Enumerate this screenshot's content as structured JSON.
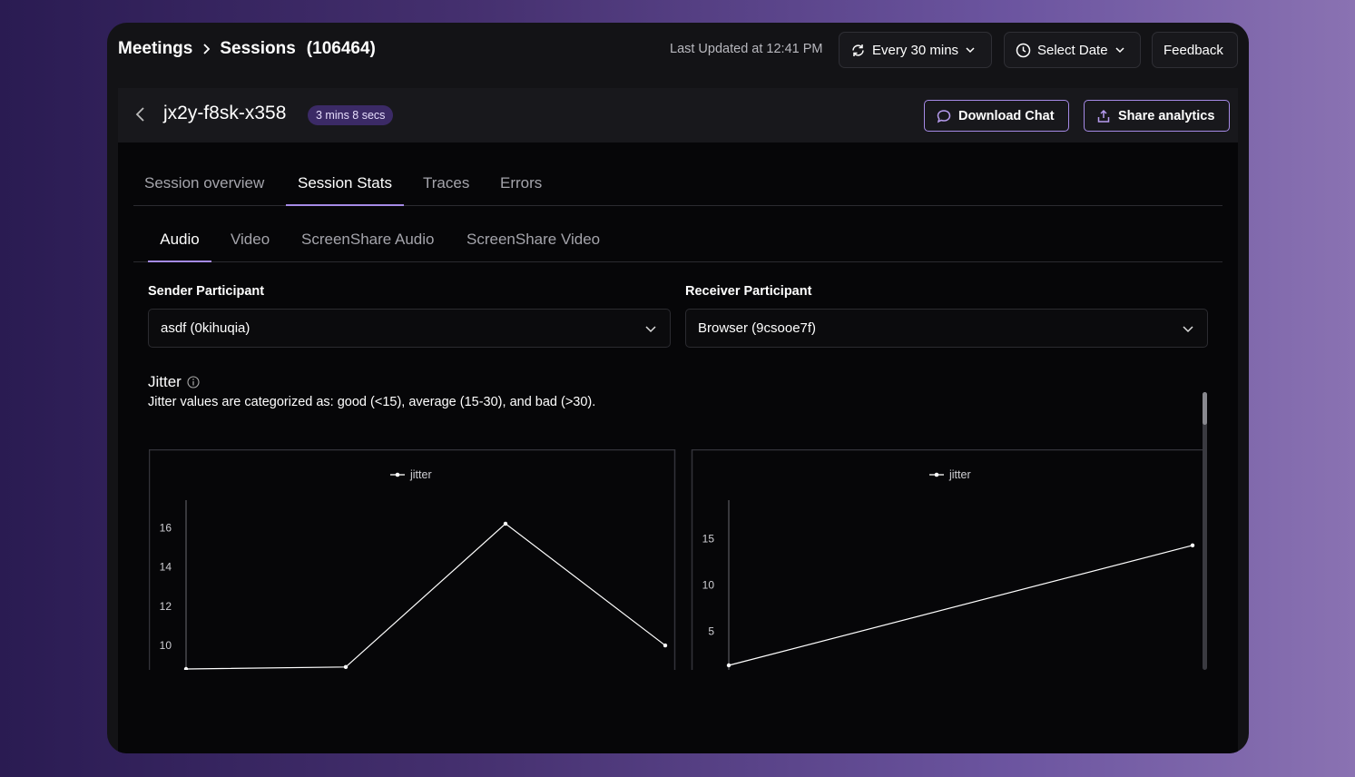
{
  "header": {
    "breadcrumb": [
      "Meetings",
      "Sessions"
    ],
    "session_count": "(106464)",
    "last_updated": "Last Updated at 12:41 PM",
    "refresh_label": "Every 30 mins",
    "date_label": "Select Date",
    "feedback_label": "Feedback"
  },
  "session": {
    "id": "jx2y-f8sk-x358",
    "duration": "3 mins 8 secs",
    "download_label": "Download Chat",
    "share_label": "Share analytics"
  },
  "tabs": [
    {
      "label": "Session overview",
      "active": false
    },
    {
      "label": "Session Stats",
      "active": true
    },
    {
      "label": "Traces",
      "active": false
    },
    {
      "label": "Errors",
      "active": false
    }
  ],
  "subtabs": [
    {
      "label": "Audio",
      "active": true
    },
    {
      "label": "Video",
      "active": false
    },
    {
      "label": "ScreenShare Audio",
      "active": false
    },
    {
      "label": "ScreenShare Video",
      "active": false
    }
  ],
  "filters": {
    "sender_label": "Sender Participant",
    "sender_value": "asdf (0kihuqia)",
    "receiver_label": "Receiver Participant",
    "receiver_value": "Browser (9csooe7f)"
  },
  "jitter": {
    "title": "Jitter",
    "description": "Jitter values are categorized as: good (<15), average (15-30), and bad (>30)."
  },
  "icons": {
    "refresh": "refresh-icon",
    "clock": "clock-icon",
    "chat": "chat-bubble-icon",
    "share": "share-upload-icon",
    "info": "info-icon"
  },
  "colors": {
    "accent": "#a58ae6",
    "badge_bg": "#3b2a66",
    "line": "#ffffff"
  },
  "chart_data": [
    {
      "type": "line",
      "legend": [
        "jitter"
      ],
      "legend_position": "top-center",
      "x": [
        1,
        2,
        3,
        4
      ],
      "series": [
        {
          "name": "jitter",
          "values": [
            8.8,
            8.9,
            16.2,
            10.0
          ]
        }
      ],
      "yticks": [
        10,
        12,
        14,
        16
      ],
      "ylim": [
        8.8,
        17.4
      ],
      "grid": false
    },
    {
      "type": "line",
      "legend": [
        "jitter"
      ],
      "legend_position": "top-center",
      "x": [
        1,
        2
      ],
      "series": [
        {
          "name": "jitter",
          "values": [
            1.3,
            14.3
          ]
        }
      ],
      "yticks": [
        5,
        10,
        15
      ],
      "ylim": [
        1.3,
        19.2
      ],
      "grid": false
    }
  ]
}
